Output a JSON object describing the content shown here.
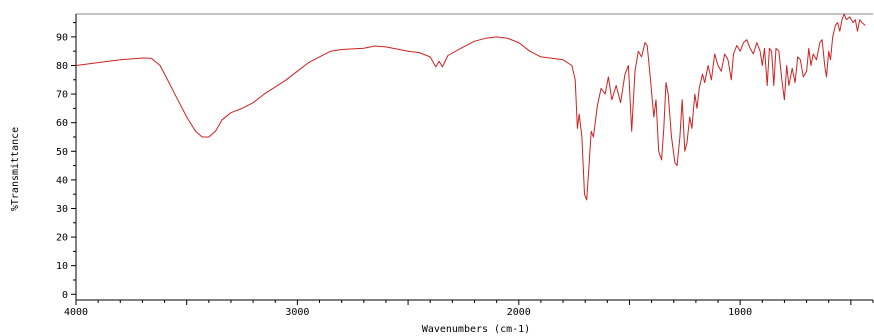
{
  "chart_data": {
    "type": "line",
    "title": "",
    "xlabel": "Wavenumbers (cm-1)",
    "ylabel": "%Transmittance",
    "xlim": [
      4000,
      400
    ],
    "ylim": [
      -2,
      98
    ],
    "x_reversed": true,
    "grid": false,
    "legend": "none",
    "line_color": "#cc2222",
    "x_ticks": [
      {
        "value": 4000,
        "label": "4000"
      },
      {
        "value": 3000,
        "label": "3000"
      },
      {
        "value": 2000,
        "label": "2000"
      },
      {
        "value": 1000,
        "label": "1000"
      }
    ],
    "y_ticks": [
      {
        "value": 0,
        "label": "0"
      },
      {
        "value": 10,
        "label": "10"
      },
      {
        "value": 20,
        "label": "20"
      },
      {
        "value": 30,
        "label": "30"
      },
      {
        "value": 40,
        "label": "40"
      },
      {
        "value": 50,
        "label": "50"
      },
      {
        "value": 60,
        "label": "60"
      },
      {
        "value": 70,
        "label": "70"
      },
      {
        "value": 80,
        "label": "80"
      },
      {
        "value": 90,
        "label": "90"
      }
    ],
    "series": [
      {
        "points": [
          [
            4000,
            80.0
          ],
          [
            3900,
            81.0
          ],
          [
            3800,
            82.0
          ],
          [
            3700,
            82.6
          ],
          [
            3660,
            82.5
          ],
          [
            3620,
            80.0
          ],
          [
            3580,
            74.0
          ],
          [
            3540,
            68.0
          ],
          [
            3500,
            62.0
          ],
          [
            3460,
            57.0
          ],
          [
            3430,
            55.0
          ],
          [
            3400,
            55.0
          ],
          [
            3370,
            57.0
          ],
          [
            3340,
            61.0
          ],
          [
            3300,
            63.5
          ],
          [
            3250,
            65.0
          ],
          [
            3200,
            67.0
          ],
          [
            3150,
            70.0
          ],
          [
            3100,
            72.5
          ],
          [
            3050,
            75.0
          ],
          [
            3000,
            78.0
          ],
          [
            2950,
            81.0
          ],
          [
            2900,
            83.0
          ],
          [
            2850,
            85.0
          ],
          [
            2800,
            85.6
          ],
          [
            2700,
            86.0
          ],
          [
            2650,
            86.8
          ],
          [
            2600,
            86.5
          ],
          [
            2500,
            85.0
          ],
          [
            2450,
            84.5
          ],
          [
            2400,
            83.0
          ],
          [
            2375,
            79.5
          ],
          [
            2360,
            81.5
          ],
          [
            2345,
            79.5
          ],
          [
            2320,
            83.5
          ],
          [
            2250,
            86.5
          ],
          [
            2200,
            88.5
          ],
          [
            2150,
            89.5
          ],
          [
            2100,
            90.0
          ],
          [
            2050,
            89.5
          ],
          [
            2000,
            88.0
          ],
          [
            1950,
            85.0
          ],
          [
            1900,
            83.0
          ],
          [
            1850,
            82.5
          ],
          [
            1800,
            82.0
          ],
          [
            1760,
            80.0
          ],
          [
            1745,
            75.0
          ],
          [
            1735,
            58.0
          ],
          [
            1727,
            63.0
          ],
          [
            1715,
            55.0
          ],
          [
            1703,
            35.0
          ],
          [
            1693,
            33.0
          ],
          [
            1683,
            45.0
          ],
          [
            1673,
            57.0
          ],
          [
            1663,
            55.0
          ],
          [
            1645,
            66.0
          ],
          [
            1628,
            72.0
          ],
          [
            1610,
            70.0
          ],
          [
            1595,
            76.0
          ],
          [
            1580,
            68.0
          ],
          [
            1560,
            73.0
          ],
          [
            1540,
            67.0
          ],
          [
            1520,
            77.0
          ],
          [
            1505,
            80.0
          ],
          [
            1490,
            57.0
          ],
          [
            1475,
            78.0
          ],
          [
            1460,
            85.0
          ],
          [
            1445,
            83.0
          ],
          [
            1430,
            88.0
          ],
          [
            1420,
            87.0
          ],
          [
            1405,
            75.0
          ],
          [
            1390,
            62.0
          ],
          [
            1380,
            68.0
          ],
          [
            1368,
            50.0
          ],
          [
            1355,
            47.0
          ],
          [
            1345,
            58.0
          ],
          [
            1335,
            74.0
          ],
          [
            1325,
            70.0
          ],
          [
            1310,
            55.0
          ],
          [
            1295,
            46.0
          ],
          [
            1285,
            45.0
          ],
          [
            1272,
            55.0
          ],
          [
            1262,
            68.0
          ],
          [
            1250,
            50.0
          ],
          [
            1240,
            53.0
          ],
          [
            1228,
            62.0
          ],
          [
            1218,
            58.0
          ],
          [
            1205,
            70.0
          ],
          [
            1195,
            65.0
          ],
          [
            1185,
            72.0
          ],
          [
            1170,
            77.0
          ],
          [
            1160,
            74.0
          ],
          [
            1145,
            80.0
          ],
          [
            1130,
            75.0
          ],
          [
            1115,
            84.0
          ],
          [
            1100,
            80.0
          ],
          [
            1085,
            78.0
          ],
          [
            1070,
            84.0
          ],
          [
            1055,
            82.0
          ],
          [
            1040,
            75.0
          ],
          [
            1030,
            84.0
          ],
          [
            1015,
            87.0
          ],
          [
            1000,
            85.0
          ],
          [
            985,
            88.0
          ],
          [
            970,
            89.0
          ],
          [
            955,
            86.0
          ],
          [
            940,
            84.0
          ],
          [
            925,
            88.0
          ],
          [
            910,
            85.0
          ],
          [
            900,
            80.0
          ],
          [
            890,
            86.0
          ],
          [
            878,
            73.0
          ],
          [
            868,
            86.0
          ],
          [
            858,
            85.0
          ],
          [
            848,
            73.0
          ],
          [
            838,
            86.0
          ],
          [
            825,
            85.0
          ],
          [
            812,
            75.0
          ],
          [
            800,
            68.0
          ],
          [
            790,
            80.0
          ],
          [
            780,
            73.0
          ],
          [
            765,
            79.0
          ],
          [
            752,
            74.0
          ],
          [
            740,
            83.0
          ],
          [
            728,
            82.0
          ],
          [
            715,
            76.0
          ],
          [
            700,
            78.0
          ],
          [
            690,
            86.0
          ],
          [
            680,
            80.0
          ],
          [
            670,
            84.0
          ],
          [
            655,
            82.0
          ],
          [
            640,
            88.0
          ],
          [
            630,
            89.0
          ],
          [
            618,
            80.0
          ],
          [
            610,
            76.0
          ],
          [
            600,
            85.0
          ],
          [
            592,
            82.0
          ],
          [
            582,
            90.0
          ],
          [
            570,
            94.0
          ],
          [
            560,
            95.0
          ],
          [
            550,
            92.0
          ],
          [
            540,
            96.0
          ],
          [
            530,
            98.0
          ],
          [
            520,
            96.0
          ],
          [
            505,
            97.0
          ],
          [
            490,
            95.0
          ],
          [
            480,
            96.0
          ],
          [
            470,
            92.0
          ],
          [
            460,
            96.0
          ],
          [
            450,
            95.0
          ],
          [
            435,
            94.0
          ]
        ]
      }
    ]
  }
}
